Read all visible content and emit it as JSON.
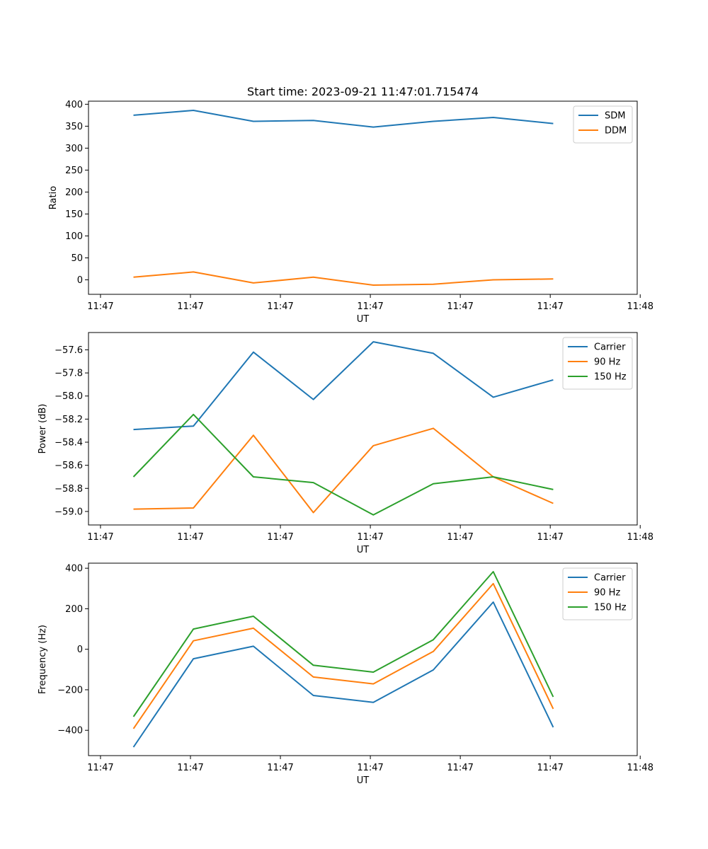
{
  "chart_data": [
    {
      "type": "line",
      "title": "Start time: 2023-09-21 11:47:01.715474",
      "xlabel": "UT",
      "ylabel": "Ratio",
      "x": [
        0,
        1,
        2,
        3,
        4,
        5,
        6,
        7
      ],
      "xlim": [
        -0.75,
        8.4
      ],
      "x_ticks": [
        -0.55,
        0.95,
        2.45,
        3.95,
        5.45,
        6.95,
        8.45
      ],
      "x_tick_labels": [
        "11:47",
        "11:47",
        "11:47",
        "11:47",
        "11:47",
        "11:47",
        "11:48"
      ],
      "ylim": [
        -33,
        407
      ],
      "y_ticks": [
        0,
        50,
        100,
        150,
        200,
        250,
        300,
        350,
        400
      ],
      "y_tick_labels": [
        "0",
        "50",
        "100",
        "150",
        "200",
        "250",
        "300",
        "350",
        "400"
      ],
      "legend": "top-right",
      "series": [
        {
          "name": "SDM",
          "color": "#1f77b4",
          "values": [
            375,
            386,
            361,
            363,
            348,
            361,
            370,
            356
          ]
        },
        {
          "name": "DDM",
          "color": "#ff7f0e",
          "values": [
            6,
            18,
            -7,
            6,
            -12,
            -10,
            0,
            2
          ]
        }
      ]
    },
    {
      "type": "line",
      "title": "",
      "xlabel": "UT",
      "ylabel": "Power (dB)",
      "x": [
        0,
        1,
        2,
        3,
        4,
        5,
        6,
        7
      ],
      "xlim": [
        -0.75,
        8.4
      ],
      "x_ticks": [
        -0.55,
        0.95,
        2.45,
        3.95,
        5.45,
        6.95,
        8.45
      ],
      "x_tick_labels": [
        "11:47",
        "11:47",
        "11:47",
        "11:47",
        "11:47",
        "11:47",
        "11:48"
      ],
      "ylim": [
        -59.117,
        -57.45
      ],
      "y_ticks": [
        -57.6,
        -57.8,
        -58.0,
        -58.2,
        -58.4,
        -58.6,
        -58.8,
        -59.0
      ],
      "y_tick_labels": [
        "−57.6",
        "−57.8",
        "−58.0",
        "−58.2",
        "−58.4",
        "−58.6",
        "−58.8",
        "−59.0"
      ],
      "legend": "top-right",
      "series": [
        {
          "name": "Carrier",
          "color": "#1f77b4",
          "values": [
            -58.29,
            -58.26,
            -57.62,
            -58.03,
            -57.53,
            -57.63,
            -58.01,
            -57.86
          ]
        },
        {
          "name": "90 Hz",
          "color": "#ff7f0e",
          "values": [
            -58.98,
            -58.97,
            -58.34,
            -59.01,
            -58.43,
            -58.28,
            -58.7,
            -58.93
          ]
        },
        {
          "name": "150 Hz",
          "color": "#2ca02c",
          "values": [
            -58.7,
            -58.16,
            -58.7,
            -58.75,
            -59.03,
            -58.76,
            -58.7,
            -58.81
          ]
        }
      ]
    },
    {
      "type": "line",
      "title": "",
      "xlabel": "UT",
      "ylabel": "Frequency (Hz)",
      "x": [
        0,
        1,
        2,
        3,
        4,
        5,
        6,
        7
      ],
      "xlim": [
        -0.75,
        8.4
      ],
      "x_ticks": [
        -0.55,
        0.95,
        2.45,
        3.95,
        5.45,
        6.95,
        8.45
      ],
      "x_tick_labels": [
        "11:47",
        "11:47",
        "11:47",
        "11:47",
        "11:47",
        "11:47",
        "11:48"
      ],
      "ylim": [
        -525,
        425
      ],
      "y_ticks": [
        400,
        200,
        0,
        -200,
        -400
      ],
      "y_tick_labels": [
        "400",
        "200",
        "0",
        "−200",
        "−400"
      ],
      "legend": "top-right",
      "series": [
        {
          "name": "Carrier",
          "color": "#1f77b4",
          "values": [
            -483,
            -47,
            15,
            -228,
            -262,
            -102,
            233,
            -385
          ]
        },
        {
          "name": "90 Hz",
          "color": "#ff7f0e",
          "values": [
            -392,
            42,
            104,
            -137,
            -171,
            -11,
            324,
            -294
          ]
        },
        {
          "name": "150 Hz",
          "color": "#2ca02c",
          "values": [
            -333,
            100,
            163,
            -79,
            -113,
            47,
            383,
            -235
          ]
        }
      ]
    }
  ]
}
